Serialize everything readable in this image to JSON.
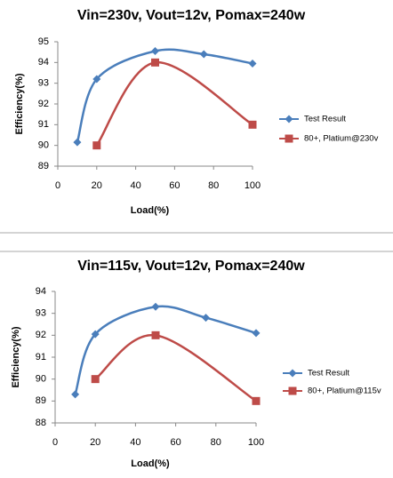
{
  "chart_data": [
    {
      "type": "line",
      "title": "Vin=230v, Vout=12v, Pomax=240w",
      "y_label": "Efficiency(%)",
      "x_label": "Load(%)",
      "xlim": [
        0,
        100
      ],
      "xticks": [
        0,
        20,
        40,
        60,
        80,
        100
      ],
      "ylim": [
        89,
        95
      ],
      "yticks": [
        89,
        90,
        91,
        92,
        93,
        94,
        95
      ],
      "grid": false,
      "legend": "right",
      "smooth": true,
      "series": [
        {
          "name": "Test Result",
          "color": "#4a7ebb",
          "marker": "diamond",
          "x": [
            10,
            20,
            50,
            75,
            100
          ],
          "values": [
            90.15,
            93.2,
            94.55,
            94.4,
            93.95
          ]
        },
        {
          "name": "80+, Platium@230v",
          "color": "#be4b48",
          "marker": "square",
          "x": [
            20,
            50,
            100
          ],
          "values": [
            90,
            94,
            91
          ]
        }
      ]
    },
    {
      "type": "line",
      "title": "Vin=115v, Vout=12v, Pomax=240w",
      "y_label": "Efficiency(%)",
      "x_label": "Load(%)",
      "xlim": [
        0,
        100
      ],
      "xticks": [
        0,
        20,
        40,
        60,
        80,
        100
      ],
      "ylim": [
        88,
        94
      ],
      "yticks": [
        88,
        89,
        90,
        91,
        92,
        93,
        94
      ],
      "grid": false,
      "legend": "right",
      "smooth": true,
      "series": [
        {
          "name": "Test Result",
          "color": "#4a7ebb",
          "marker": "diamond",
          "x": [
            10,
            20,
            50,
            75,
            100
          ],
          "values": [
            89.3,
            92.05,
            93.3,
            92.8,
            92.1
          ]
        },
        {
          "name": "80+, Platium@115v",
          "color": "#be4b48",
          "marker": "square",
          "x": [
            20,
            50,
            100
          ],
          "values": [
            90,
            92,
            89
          ]
        }
      ]
    }
  ]
}
